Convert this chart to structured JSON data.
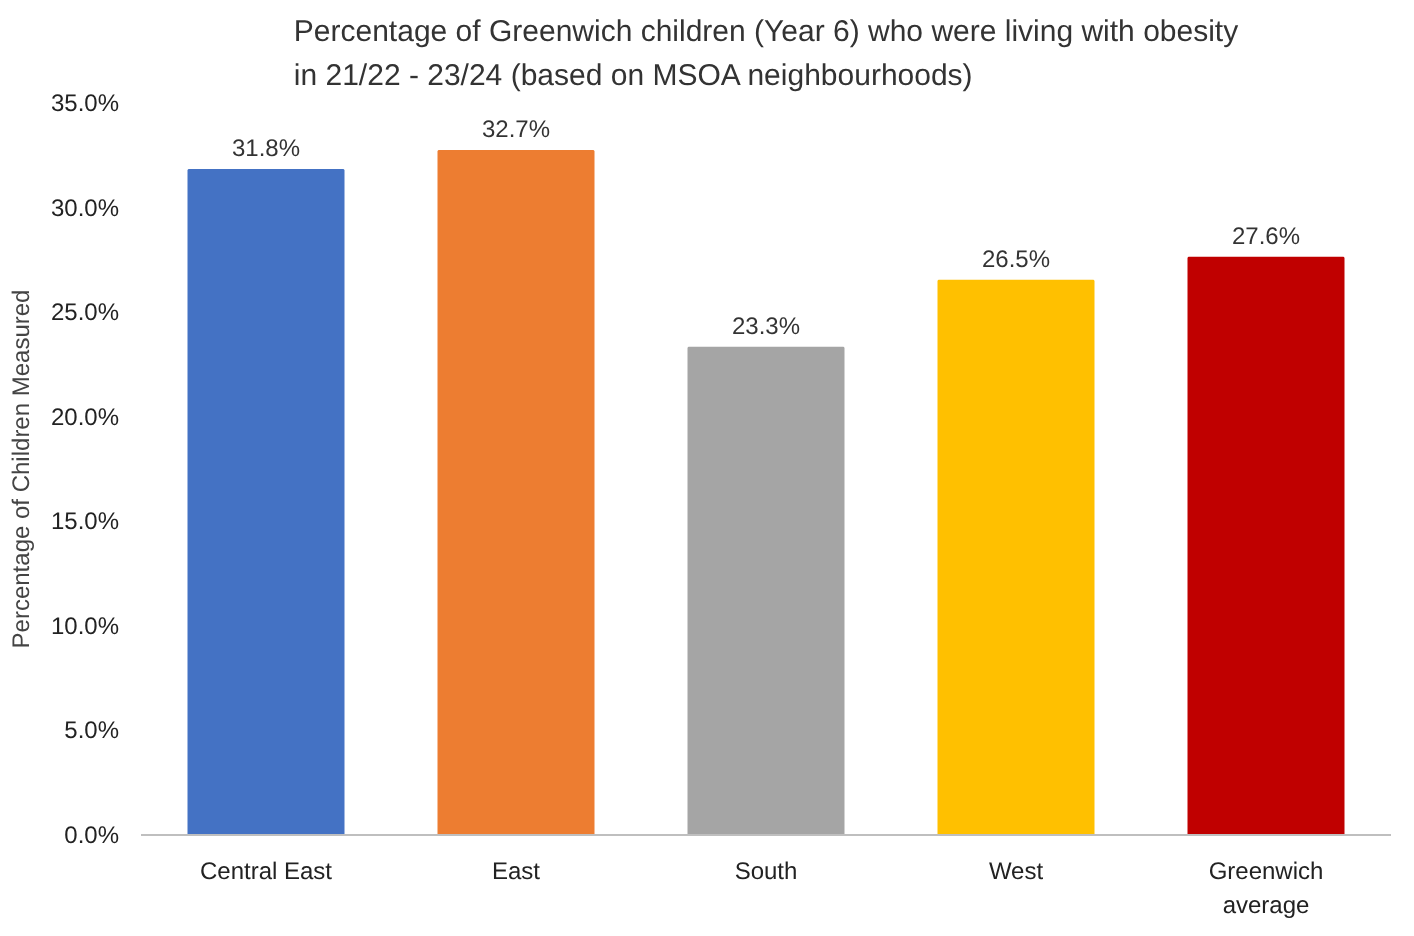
{
  "chart_data": {
    "type": "bar",
    "title": "Percentage of Greenwich children (Year 6) who were living with obesity\nin 21/22 - 23/24 (based on MSOA neighbourhoods)",
    "ylabel": "Percentage of Children Measured",
    "categories": [
      "Central East",
      "East",
      "South",
      "West",
      "Greenwich average"
    ],
    "values": [
      31.8,
      32.7,
      23.3,
      26.5,
      27.6
    ],
    "colors": [
      "#4472c4",
      "#ed7d31",
      "#a5a5a5",
      "#ffc000",
      "#c00000"
    ],
    "value_labels": [
      "31.8%",
      "32.7%",
      "23.3%",
      "26.5%",
      "27.6%"
    ],
    "ylim": [
      0,
      35
    ],
    "yticks": [
      {
        "value": 0,
        "label": "0.0%"
      },
      {
        "value": 5,
        "label": "5.0%"
      },
      {
        "value": 10,
        "label": "10.0%"
      },
      {
        "value": 15,
        "label": "15.0%"
      },
      {
        "value": 20,
        "label": "20.0%"
      },
      {
        "value": 25,
        "label": "25.0%"
      },
      {
        "value": 30,
        "label": "30.0%"
      },
      {
        "value": 35,
        "label": "35.0%"
      }
    ],
    "grid": false
  }
}
